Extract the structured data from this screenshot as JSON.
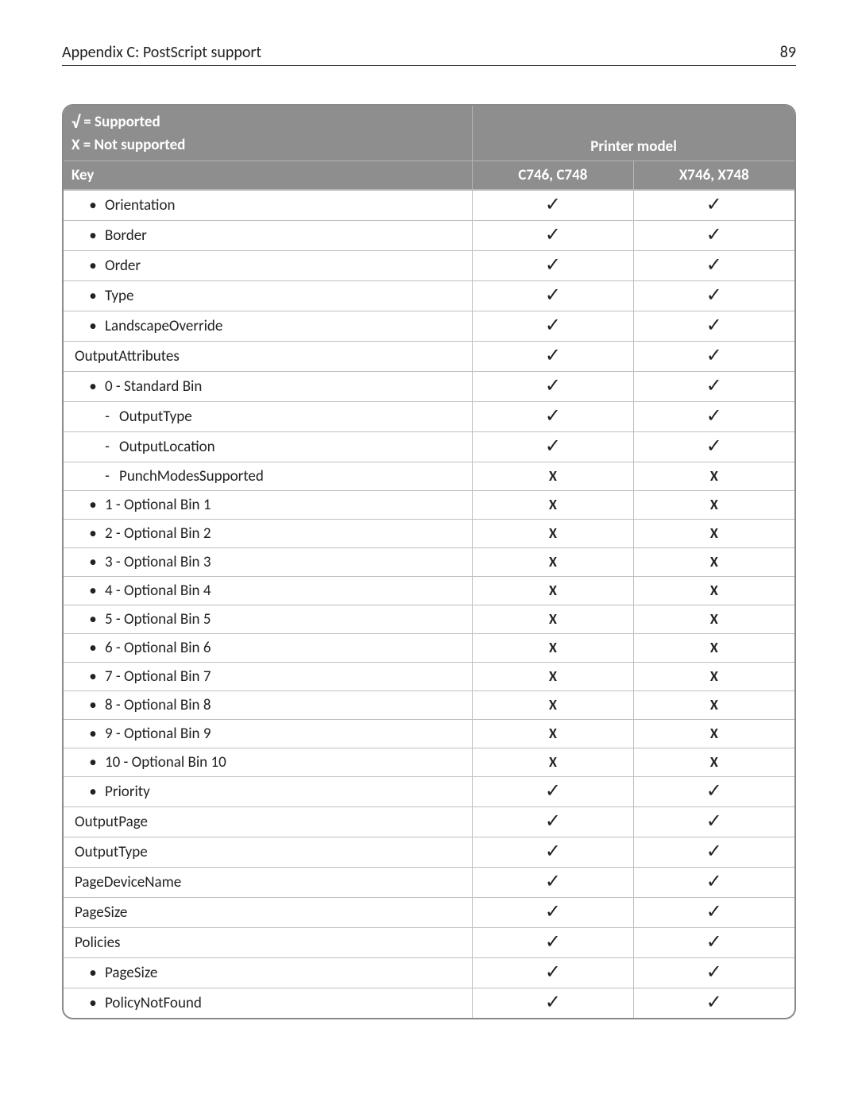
{
  "header": {
    "title": "Appendix C: PostScript support",
    "page_number": "89"
  },
  "legend": {
    "supported_symbol": "√",
    "supported_text": " = Supported",
    "not_supported_text": "X = Not supported",
    "printer_model_label": "Printer model"
  },
  "columns": {
    "key_label": "Key",
    "model_a": "C746, C748",
    "model_b": "X746, X748"
  },
  "symbols": {
    "check": "✓",
    "x": "X"
  },
  "rows": [
    {
      "label": "Orientation",
      "style": "bullet",
      "indent": 20,
      "a": "check",
      "b": "check"
    },
    {
      "label": "Border",
      "style": "bullet",
      "indent": 20,
      "a": "check",
      "b": "check"
    },
    {
      "label": "Order",
      "style": "bullet",
      "indent": 20,
      "a": "check",
      "b": "check"
    },
    {
      "label": "Type",
      "style": "bullet",
      "indent": 20,
      "a": "check",
      "b": "check"
    },
    {
      "label": "LandscapeOverride",
      "style": "bullet",
      "indent": 20,
      "a": "check",
      "b": "check"
    },
    {
      "label": "OutputAttributes",
      "style": "plain",
      "indent": 0,
      "a": "check",
      "b": "check"
    },
    {
      "label": "0 - Standard Bin",
      "style": "bullet",
      "indent": 20,
      "a": "check",
      "b": "check"
    },
    {
      "label": "OutputType",
      "style": "dash",
      "indent": 38,
      "a": "check",
      "b": "check"
    },
    {
      "label": "OutputLocation",
      "style": "dash",
      "indent": 38,
      "a": "check",
      "b": "check"
    },
    {
      "label": "PunchModesSupported",
      "style": "dash",
      "indent": 38,
      "a": "x",
      "b": "x"
    },
    {
      "label": "1 - Optional Bin 1",
      "style": "bullet",
      "indent": 20,
      "a": "x",
      "b": "x"
    },
    {
      "label": "2 - Optional Bin 2",
      "style": "bullet",
      "indent": 20,
      "a": "x",
      "b": "x"
    },
    {
      "label": "3 - Optional Bin 3",
      "style": "bullet",
      "indent": 20,
      "a": "x",
      "b": "x"
    },
    {
      "label": "4 - Optional Bin 4",
      "style": "bullet",
      "indent": 20,
      "a": "x",
      "b": "x"
    },
    {
      "label": "5 - Optional Bin 5",
      "style": "bullet",
      "indent": 20,
      "a": "x",
      "b": "x"
    },
    {
      "label": "6 - Optional Bin 6",
      "style": "bullet",
      "indent": 20,
      "a": "x",
      "b": "x"
    },
    {
      "label": "7 - Optional Bin 7",
      "style": "bullet",
      "indent": 20,
      "a": "x",
      "b": "x"
    },
    {
      "label": "8 - Optional Bin 8",
      "style": "bullet",
      "indent": 20,
      "a": "x",
      "b": "x"
    },
    {
      "label": "9 - Optional Bin 9",
      "style": "bullet",
      "indent": 20,
      "a": "x",
      "b": "x"
    },
    {
      "label": "10 - Optional Bin 10",
      "style": "bullet",
      "indent": 20,
      "a": "x",
      "b": "x"
    },
    {
      "label": "Priority",
      "style": "bullet",
      "indent": 20,
      "a": "check",
      "b": "check"
    },
    {
      "label": "OutputPage",
      "style": "plain",
      "indent": 0,
      "a": "check",
      "b": "check"
    },
    {
      "label": "OutputType",
      "style": "plain",
      "indent": 0,
      "a": "check",
      "b": "check"
    },
    {
      "label": "PageDeviceName",
      "style": "plain",
      "indent": 0,
      "a": "check",
      "b": "check"
    },
    {
      "label": "PageSize",
      "style": "plain",
      "indent": 0,
      "a": "check",
      "b": "check"
    },
    {
      "label": "Policies",
      "style": "plain",
      "indent": 0,
      "a": "check",
      "b": "check"
    },
    {
      "label": "PageSize",
      "style": "bullet",
      "indent": 20,
      "a": "check",
      "b": "check"
    },
    {
      "label": "PolicyNotFound",
      "style": "bullet",
      "indent": 20,
      "a": "check",
      "b": "check"
    }
  ]
}
